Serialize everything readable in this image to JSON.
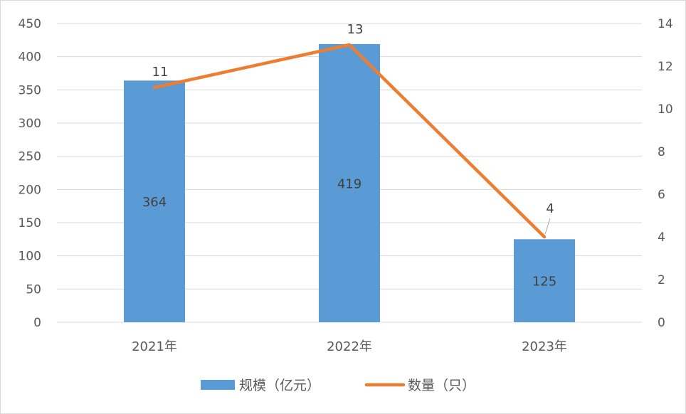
{
  "chart_data": {
    "type": "bar+line",
    "title": "",
    "categories": [
      "2021年",
      "2022年",
      "2023年"
    ],
    "series": [
      {
        "name": "规模（亿元）",
        "type": "bar",
        "axis": "left",
        "values": [
          364,
          419,
          125
        ],
        "color": "#5b9bd5"
      },
      {
        "name": "数量（只）",
        "type": "line",
        "axis": "right",
        "values": [
          11,
          13,
          4
        ],
        "color": "#ed7d31"
      }
    ],
    "y_left": {
      "min": 0,
      "max": 450,
      "step": 50,
      "ticks": [
        "0",
        "50",
        "100",
        "150",
        "200",
        "250",
        "300",
        "350",
        "400",
        "450"
      ]
    },
    "y_right": {
      "min": 0,
      "max": 14,
      "step": 2,
      "ticks": [
        "0",
        "2",
        "4",
        "6",
        "8",
        "10",
        "12",
        "14"
      ]
    },
    "grid": true,
    "legend_position": "bottom",
    "gridline_color": "#d9d9d9",
    "axis_text_color": "#595959"
  }
}
